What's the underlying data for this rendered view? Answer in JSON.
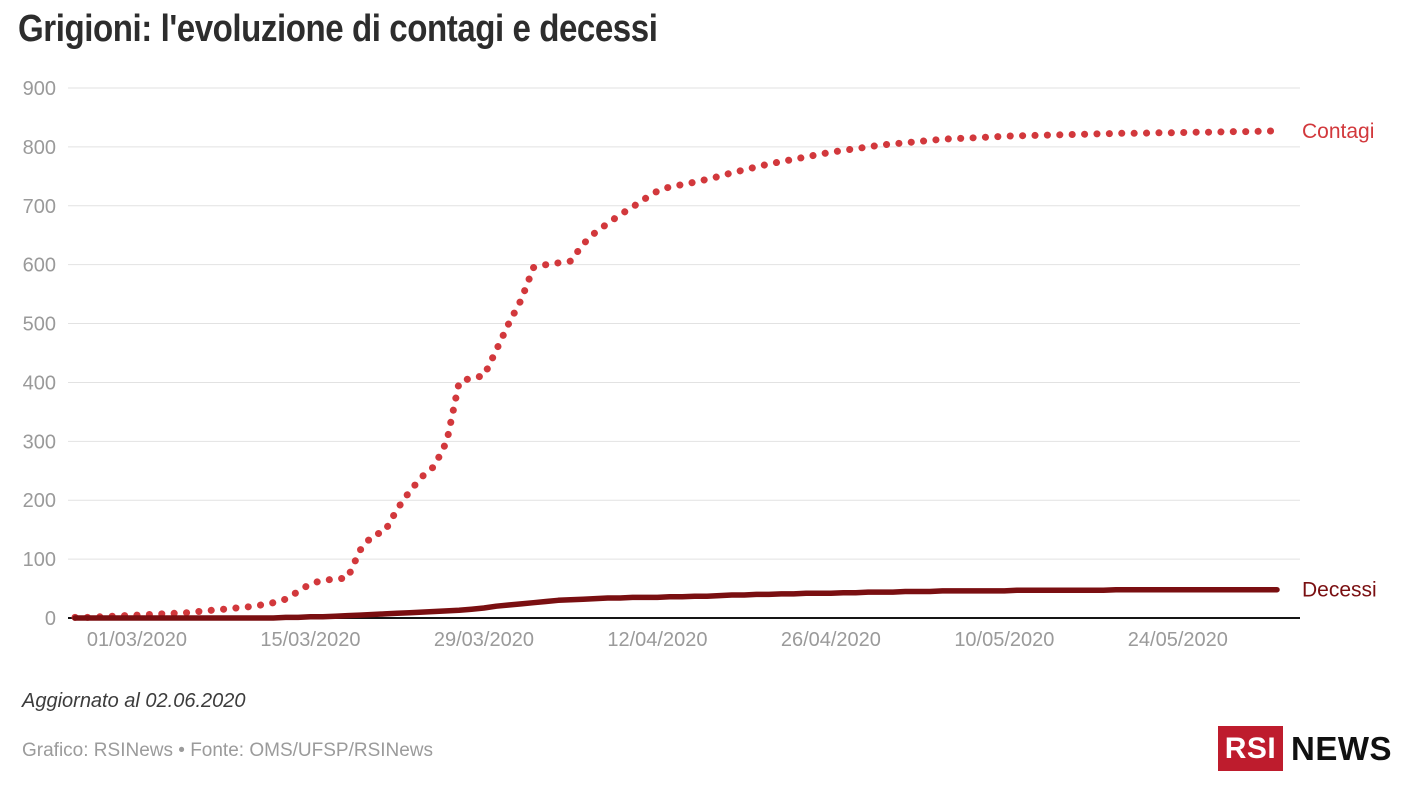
{
  "title": "Grigioni: l'evoluzione di contagi e decessi",
  "footer": {
    "updated": "Aggiornato al 02.06.2020",
    "credits": "Grafico: RSINews • Fonte: OMS/UFSP/RSINews"
  },
  "logo": {
    "rsi": "RSI",
    "news": "NEWS",
    "red": "#be1c2d"
  },
  "colors": {
    "grid": "#e2e2e2",
    "axis_line": "#151515",
    "tick_label": "#9a9a9a",
    "title": "#2d2d2d",
    "contagi": "#d2383c",
    "decessi": "#7a0f11"
  },
  "chart_data": {
    "type": "line",
    "title": "Grigioni: l'evoluzione di contagi e decessi",
    "xlabel": "",
    "ylabel": "",
    "start_date": "25/02/2020",
    "end_date": "01/06/2020",
    "points_per_day": 1,
    "x_tick_labels": [
      "01/03/2020",
      "15/03/2020",
      "29/03/2020",
      "12/04/2020",
      "26/04/2020",
      "10/05/2020",
      "24/05/2020"
    ],
    "x_tick_day_index": [
      5,
      19,
      33,
      47,
      61,
      75,
      89
    ],
    "ylim": [
      0,
      900
    ],
    "y_ticks": [
      0,
      100,
      200,
      300,
      400,
      500,
      600,
      700,
      800,
      900
    ],
    "grid": "horizontal",
    "legend_position": "end-of-line-labels-right",
    "series": [
      {
        "name": "Contagi",
        "style": "dotted",
        "color": "#d2383c",
        "values": [
          1,
          1,
          2,
          3,
          4,
          5,
          6,
          7,
          8,
          9,
          11,
          13,
          15,
          17,
          19,
          22,
          26,
          32,
          45,
          58,
          64,
          66,
          68,
          115,
          140,
          147,
          185,
          215,
          240,
          258,
          300,
          400,
          408,
          411,
          455,
          500,
          540,
          595,
          600,
          603,
          606,
          635,
          655,
          670,
          685,
          698,
          712,
          725,
          732,
          736,
          740,
          745,
          750,
          756,
          761,
          766,
          771,
          775,
          779,
          783,
          787,
          791,
          794,
          797,
          800,
          803,
          805,
          807,
          809,
          811,
          813,
          814,
          815,
          816,
          817,
          818,
          819,
          819,
          820,
          820,
          821,
          821,
          822,
          822,
          823,
          823,
          823,
          824,
          824,
          824,
          825,
          825,
          825,
          826,
          826,
          826,
          827,
          827
        ]
      },
      {
        "name": "Decessi",
        "style": "solid",
        "color": "#7a0f11",
        "values": [
          0,
          0,
          0,
          0,
          0,
          0,
          0,
          0,
          0,
          0,
          0,
          0,
          0,
          0,
          0,
          0,
          0,
          1,
          1,
          2,
          2,
          3,
          4,
          5,
          6,
          7,
          8,
          9,
          10,
          11,
          12,
          13,
          15,
          17,
          20,
          22,
          24,
          26,
          28,
          30,
          31,
          32,
          33,
          34,
          34,
          35,
          35,
          35,
          36,
          36,
          37,
          37,
          38,
          39,
          39,
          40,
          40,
          41,
          41,
          42,
          42,
          42,
          43,
          43,
          44,
          44,
          44,
          45,
          45,
          45,
          46,
          46,
          46,
          46,
          46,
          46,
          47,
          47,
          47,
          47,
          47,
          47,
          47,
          47,
          48,
          48,
          48,
          48,
          48,
          48,
          48,
          48,
          48,
          48,
          48,
          48,
          48,
          48
        ]
      }
    ]
  }
}
